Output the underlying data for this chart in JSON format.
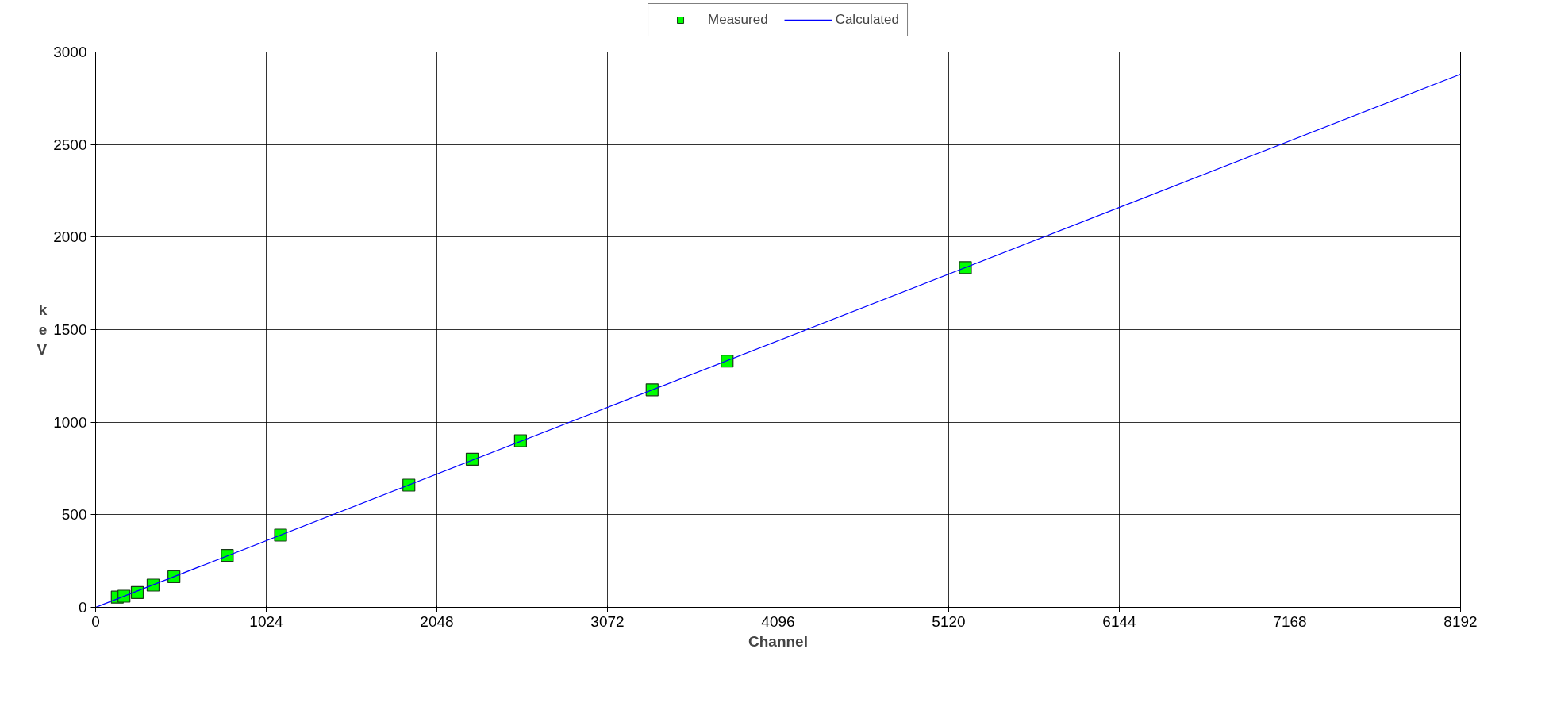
{
  "chart_data": {
    "type": "scatter",
    "xlabel": "Channel",
    "ylabel": "keV",
    "xlim": [
      0,
      8192
    ],
    "ylim": [
      0,
      3000
    ],
    "xticks": [
      0,
      1024,
      2048,
      3072,
      4096,
      5120,
      6144,
      7168,
      8192
    ],
    "yticks": [
      0,
      500,
      1000,
      1500,
      2000,
      2500,
      3000
    ],
    "grid": true,
    "legend": "top",
    "series": [
      {
        "name": "Measured",
        "marker": "square",
        "color": "#00ff00",
        "x": [
          130,
          170,
          250,
          345,
          470,
          790,
          1110,
          1880,
          2260,
          2550,
          3340,
          3790,
          5220
        ],
        "values": [
          55,
          60,
          80,
          120,
          165,
          280,
          390,
          660,
          800,
          900,
          1175,
          1330,
          1835
        ]
      },
      {
        "name": "Calculated",
        "type": "line",
        "color": "#0000ff",
        "x": [
          0,
          8192
        ],
        "values": [
          0,
          2880
        ]
      }
    ]
  }
}
